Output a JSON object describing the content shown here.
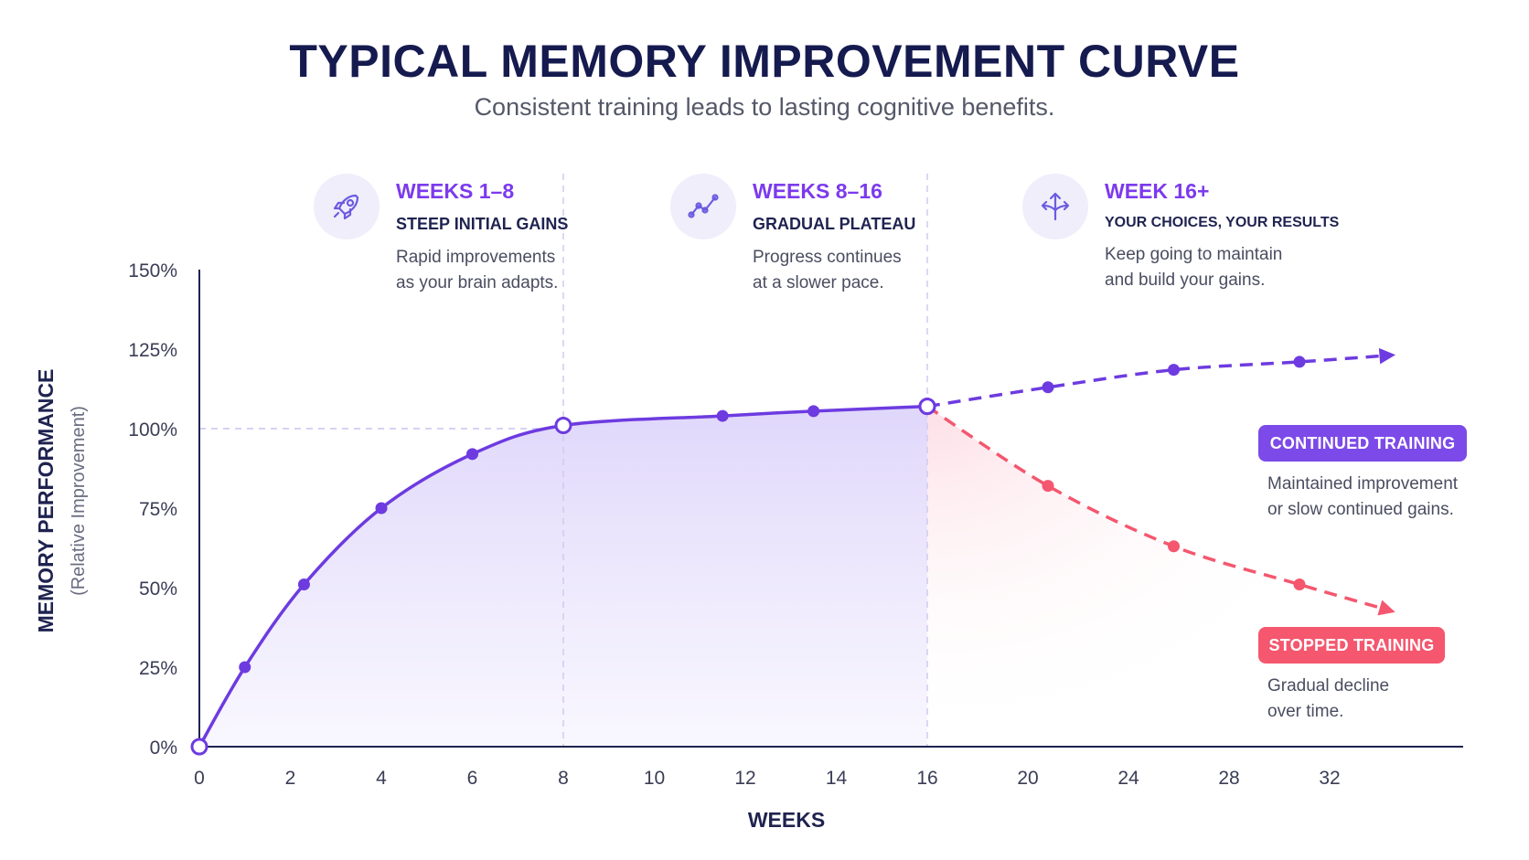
{
  "title": "TYPICAL MEMORY IMPROVEMENT CURVE",
  "subtitle": "Consistent training leads to lasting cognitive benefits.",
  "phases": [
    {
      "icon": "rocket-icon",
      "title": "WEEKS 1–8",
      "subtitle": "STEEP INITIAL GAINS",
      "desc_line1": "Rapid improvements",
      "desc_line2": "as your brain adapts."
    },
    {
      "icon": "trend-line-icon",
      "title": "WEEKS 8–16",
      "subtitle": "GRADUAL PLATEAU",
      "desc_line1": "Progress continues",
      "desc_line2": "at a slower pace."
    },
    {
      "icon": "split-arrows-icon",
      "title": "WEEK 16+",
      "subtitle": "YOUR CHOICES, YOUR RESULTS",
      "desc_line1": "Keep going to maintain",
      "desc_line2": "and build your gains."
    }
  ],
  "labels": {
    "continued": "CONTINUED TRAINING",
    "continued_note1": "Maintained improvement",
    "continued_note2": "or slow continued gains.",
    "stopped": "STOPPED TRAINING",
    "stopped_note1": "Gradual decline",
    "stopped_note2": "over time."
  },
  "colors": {
    "primary": "#7c3aed",
    "line": "#6d3be0",
    "stopped": "#f4576e",
    "axis": "#1f2350"
  },
  "chart_data": {
    "type": "line",
    "title": "TYPICAL MEMORY IMPROVEMENT CURVE",
    "xlabel": "WEEKS",
    "ylabel": "MEMORY PERFORMANCE",
    "ylabel_sub": "(Relative Improvement)",
    "x_ticks": [
      "0",
      "2",
      "4",
      "6",
      "8",
      "10",
      "12",
      "14",
      "16",
      "20",
      "24",
      "28",
      "32"
    ],
    "y_ticks": [
      "0%",
      "25%",
      "50%",
      "75%",
      "100%",
      "125%",
      "150%"
    ],
    "ylim": [
      0,
      150
    ],
    "reference_line_y": 100,
    "phase_boundaries_x": [
      8,
      16
    ],
    "series": [
      {
        "name": "",
        "style": "solid",
        "x": [
          0,
          1,
          2.3,
          4,
          6,
          8,
          11.5,
          13.5,
          16
        ],
        "y": [
          0,
          25,
          51,
          75,
          92,
          101,
          104,
          105.5,
          107
        ]
      },
      {
        "name": "CONTINUED TRAINING",
        "style": "dashed",
        "x": [
          16,
          20.8,
          25.8,
          30.8,
          34.3
        ],
        "y": [
          107,
          113,
          118.5,
          121,
          123
        ]
      },
      {
        "name": "STOPPED TRAINING",
        "style": "dashed",
        "x": [
          16,
          20.8,
          25.8,
          30.8,
          34.3
        ],
        "y": [
          107,
          82,
          63,
          51,
          43
        ]
      }
    ]
  }
}
